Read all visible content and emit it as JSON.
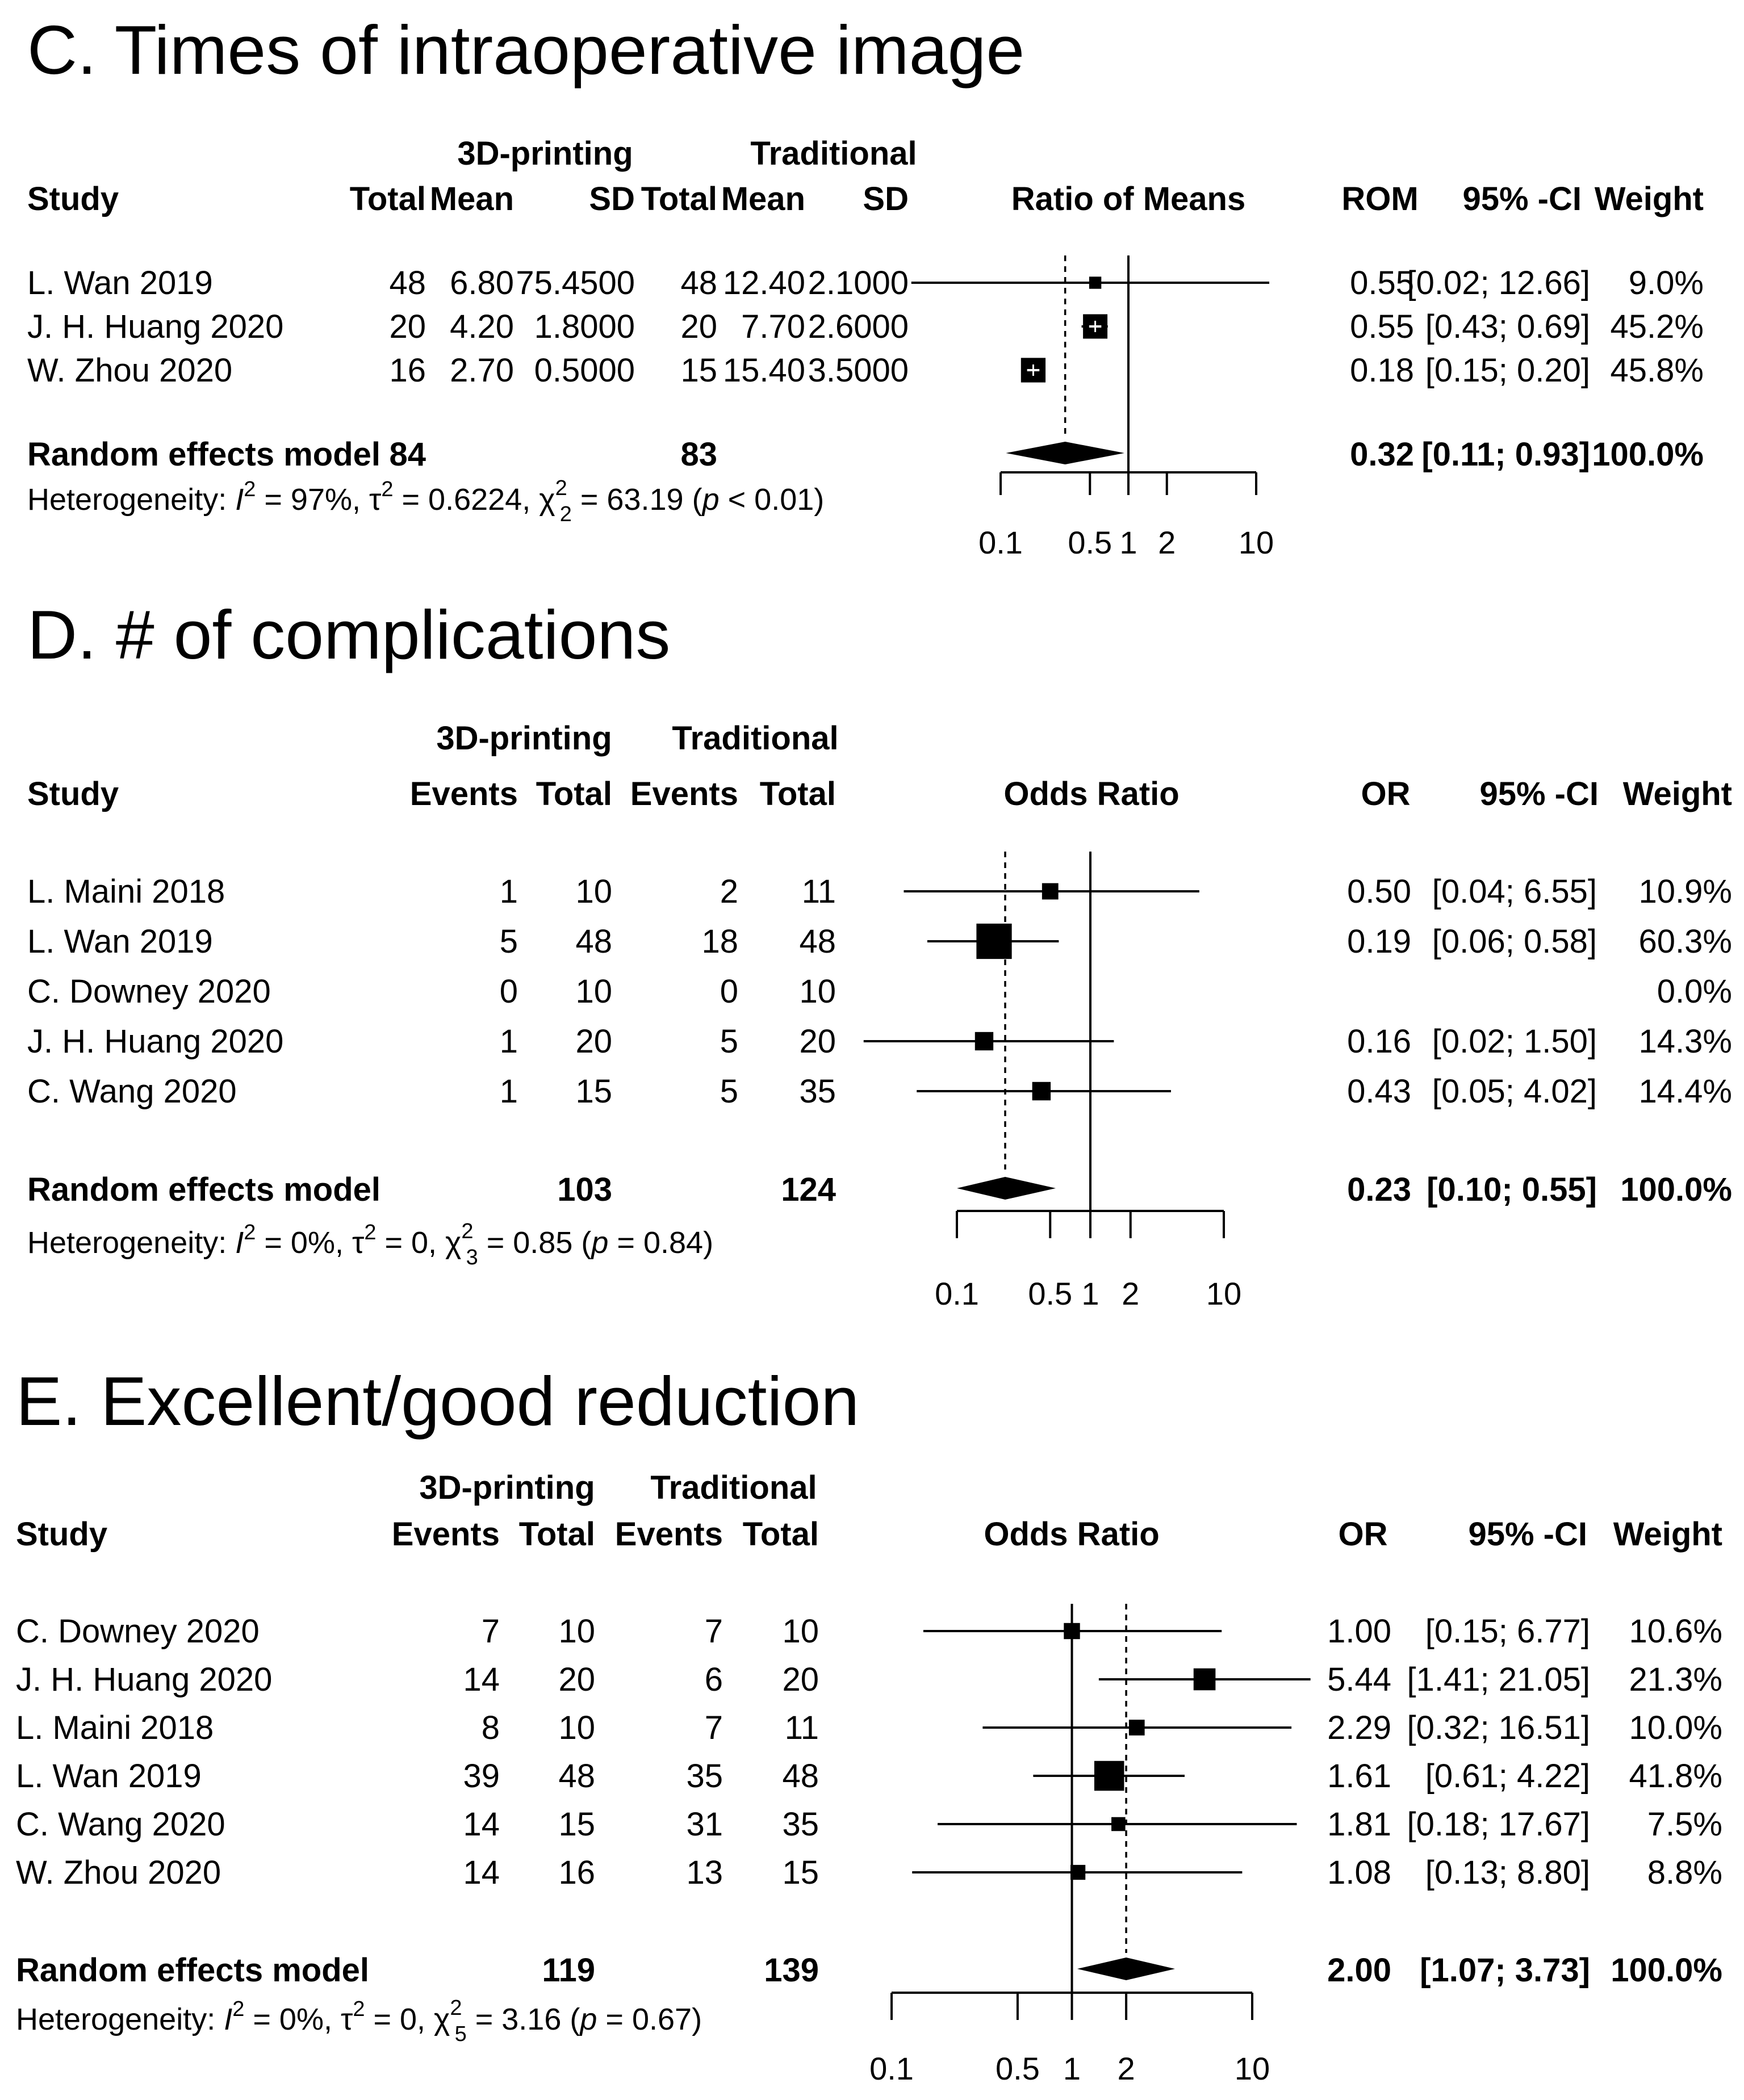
{
  "chart_data": [
    {
      "type": "forest",
      "title": "C. Times of intraoperative image",
      "effect_label": "Ratio of Means",
      "effect_abbrev": "ROM",
      "ci_label": "95% -CI",
      "weight_label": "Weight",
      "group_headers": [
        "3D-printing",
        "Traditional"
      ],
      "columns": [
        "Study",
        "Total",
        "Mean",
        "SD",
        "Total",
        "Mean",
        "SD"
      ],
      "axis": {
        "scale": "log",
        "ticks": [
          0.1,
          0.5,
          1,
          2,
          10
        ],
        "tick_labels": [
          "0.1",
          "0.5",
          "1",
          "2",
          "10"
        ]
      },
      "null_value": 1,
      "pooled_line": 0.32,
      "studies": [
        {
          "name": "L. Wan 2019",
          "cells": [
            "48",
            "6.80",
            "75.4500",
            "48",
            "12.40",
            "2.1000"
          ],
          "est": 0.55,
          "lo": 0.02,
          "hi": 12.66,
          "est_text": "0.55",
          "ci_text": "[0.02; 12.66]",
          "weight_text": "9.0%",
          "weight": 9.0,
          "inner_mark": false
        },
        {
          "name": "J. H. Huang 2020",
          "cells": [
            "20",
            "4.20",
            "1.8000",
            "20",
            "7.70",
            "2.6000"
          ],
          "est": 0.55,
          "lo": 0.43,
          "hi": 0.69,
          "est_text": "0.55",
          "ci_text": "[0.43; 0.69]",
          "weight_text": "45.2%",
          "weight": 45.2,
          "inner_mark": true
        },
        {
          "name": "W. Zhou 2020",
          "cells": [
            "16",
            "2.70",
            "0.5000",
            "15",
            "15.40",
            "3.5000"
          ],
          "est": 0.18,
          "lo": 0.15,
          "hi": 0.2,
          "est_text": "0.18",
          "ci_text": "[0.15; 0.20]",
          "weight_text": "45.8%",
          "weight": 45.8,
          "inner_mark": true
        }
      ],
      "pooled": {
        "name": "Random effects model",
        "cells": [
          "84",
          "",
          "",
          "83",
          "",
          ""
        ],
        "est": 0.32,
        "lo": 0.11,
        "hi": 0.93,
        "est_text": "0.32",
        "ci_text": "[0.11; 0.93]",
        "weight_text": "100.0%"
      },
      "heterogeneity": {
        "prefix": "Heterogeneity: ",
        "i2": "97%",
        "tau2": "0.6224",
        "chi2_df": "2",
        "chi2": "63.19",
        "p": "< 0.01"
      }
    },
    {
      "type": "forest",
      "title": "D. # of complications",
      "effect_label": "Odds Ratio",
      "effect_abbrev": "OR",
      "ci_label": "95% -CI",
      "weight_label": "Weight",
      "group_headers": [
        "3D-printing",
        "Traditional"
      ],
      "columns": [
        "Study",
        "Events",
        "Total",
        "Events",
        "Total"
      ],
      "axis": {
        "scale": "log",
        "ticks": [
          0.1,
          0.5,
          1,
          2,
          10
        ],
        "tick_labels": [
          "0.1",
          "0.5",
          "1",
          "2",
          "10"
        ]
      },
      "null_value": 1,
      "pooled_line": 0.23,
      "studies": [
        {
          "name": "L. Maini 2018",
          "cells": [
            "1",
            "10",
            "2",
            "11"
          ],
          "est": 0.5,
          "lo": 0.04,
          "hi": 6.55,
          "est_text": "0.50",
          "ci_text": "[0.04; 6.55]",
          "weight_text": "10.9%",
          "weight": 10.9,
          "inner_mark": false
        },
        {
          "name": "L. Wan 2019",
          "cells": [
            "5",
            "48",
            "18",
            "48"
          ],
          "est": 0.19,
          "lo": 0.06,
          "hi": 0.58,
          "est_text": "0.19",
          "ci_text": "[0.06; 0.58]",
          "weight_text": "60.3%",
          "weight": 60.3,
          "inner_mark": false
        },
        {
          "name": "C. Downey 2020",
          "cells": [
            "0",
            "10",
            "0",
            "10"
          ],
          "est": null,
          "lo": null,
          "hi": null,
          "est_text": "",
          "ci_text": "",
          "weight_text": "0.0%",
          "weight": 0,
          "inner_mark": false
        },
        {
          "name": "J. H. Huang 2020",
          "cells": [
            "1",
            "20",
            "5",
            "20"
          ],
          "est": 0.16,
          "lo": 0.02,
          "hi": 1.5,
          "est_text": "0.16",
          "ci_text": "[0.02; 1.50]",
          "weight_text": "14.3%",
          "weight": 14.3,
          "inner_mark": false
        },
        {
          "name": "C. Wang 2020",
          "cells": [
            "1",
            "15",
            "5",
            "35"
          ],
          "est": 0.43,
          "lo": 0.05,
          "hi": 4.02,
          "est_text": "0.43",
          "ci_text": "[0.05; 4.02]",
          "weight_text": "14.4%",
          "weight": 14.4,
          "inner_mark": false
        }
      ],
      "pooled": {
        "name": "Random effects model",
        "cells": [
          "",
          "103",
          "",
          "124"
        ],
        "est": 0.23,
        "lo": 0.1,
        "hi": 0.55,
        "est_text": "0.23",
        "ci_text": "[0.10; 0.55]",
        "weight_text": "100.0%"
      },
      "heterogeneity": {
        "prefix": "Heterogeneity: ",
        "i2": "0%",
        "tau2": "0",
        "chi2_df": "3",
        "chi2": "0.85",
        "p": "= 0.84"
      }
    },
    {
      "type": "forest",
      "title": "E. Excellent/good reduction",
      "effect_label": "Odds Ratio",
      "effect_abbrev": "OR",
      "ci_label": "95% -CI",
      "weight_label": "Weight",
      "group_headers": [
        "3D-printing",
        "Traditional"
      ],
      "columns": [
        "Study",
        "Events",
        "Total",
        "Events",
        "Total"
      ],
      "axis": {
        "scale": "log",
        "ticks": [
          0.1,
          0.5,
          1,
          2,
          10
        ],
        "tick_labels": [
          "0.1",
          "0.5",
          "1",
          "2",
          "10"
        ]
      },
      "null_value": 1,
      "pooled_line": 2.0,
      "studies": [
        {
          "name": "C. Downey 2020",
          "cells": [
            "7",
            "10",
            "7",
            "10"
          ],
          "est": 1.0,
          "lo": 0.15,
          "hi": 6.77,
          "est_text": "1.00",
          "ci_text": "[0.15; 6.77]",
          "weight_text": "10.6%",
          "weight": 10.6,
          "inner_mark": false
        },
        {
          "name": "J. H. Huang 2020",
          "cells": [
            "14",
            "20",
            "6",
            "20"
          ],
          "est": 5.44,
          "lo": 1.41,
          "hi": 21.05,
          "est_text": "5.44",
          "ci_text": "[1.41; 21.05]",
          "weight_text": "21.3%",
          "weight": 21.3,
          "inner_mark": false
        },
        {
          "name": "L. Maini 2018",
          "cells": [
            "8",
            "10",
            "7",
            "11"
          ],
          "est": 2.29,
          "lo": 0.32,
          "hi": 16.51,
          "est_text": "2.29",
          "ci_text": "[0.32; 16.51]",
          "weight_text": "10.0%",
          "weight": 10.0,
          "inner_mark": false
        },
        {
          "name": "L. Wan 2019",
          "cells": [
            "39",
            "48",
            "35",
            "48"
          ],
          "est": 1.61,
          "lo": 0.61,
          "hi": 4.22,
          "est_text": "1.61",
          "ci_text": "[0.61; 4.22]",
          "weight_text": "41.8%",
          "weight": 41.8,
          "inner_mark": false
        },
        {
          "name": "C. Wang 2020",
          "cells": [
            "14",
            "15",
            "31",
            "35"
          ],
          "est": 1.81,
          "lo": 0.18,
          "hi": 17.67,
          "est_text": "1.81",
          "ci_text": "[0.18; 17.67]",
          "weight_text": "7.5%",
          "weight": 7.5,
          "inner_mark": false
        },
        {
          "name": "W. Zhou 2020",
          "cells": [
            "14",
            "16",
            "13",
            "15"
          ],
          "est": 1.08,
          "lo": 0.13,
          "hi": 8.8,
          "est_text": "1.08",
          "ci_text": "[0.13; 8.80]",
          "weight_text": "8.8%",
          "weight": 8.8,
          "inner_mark": false
        }
      ],
      "pooled": {
        "name": "Random effects model",
        "cells": [
          "",
          "119",
          "",
          "139"
        ],
        "est": 2.0,
        "lo": 1.07,
        "hi": 3.73,
        "est_text": "2.00",
        "ci_text": "[1.07; 3.73]",
        "weight_text": "100.0%"
      },
      "heterogeneity": {
        "prefix": "Heterogeneity: ",
        "i2": "0%",
        "tau2": "0",
        "chi2_df": "5",
        "chi2": "3.16",
        "p": "= 0.67"
      }
    }
  ]
}
